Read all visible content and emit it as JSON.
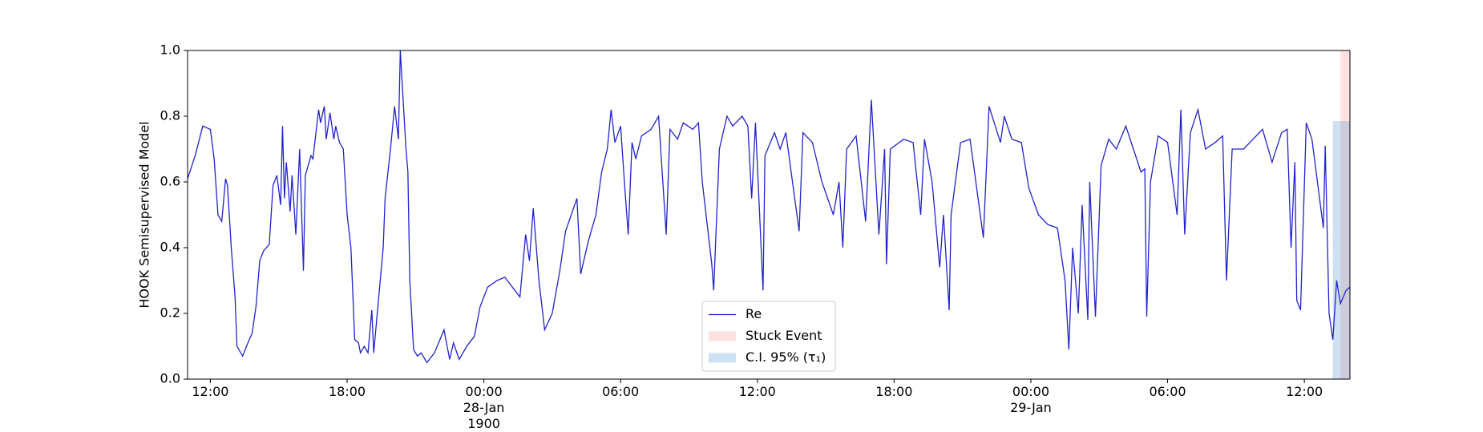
{
  "chart_data": {
    "type": "line",
    "y_label": "HOOK Semisupervised Model",
    "x": [
      "1900-01-27 11:00",
      "1900-01-27 11:20",
      "1900-01-27 11:40",
      "1900-01-27 12:00",
      "1900-01-27 12:10",
      "1900-01-27 12:20",
      "1900-01-27 12:30",
      "1900-01-27 12:40",
      "1900-01-27 12:45",
      "1900-01-27 12:55",
      "1900-01-27 13:05",
      "1900-01-27 13:10",
      "1900-01-27 13:25",
      "1900-01-27 13:35",
      "1900-01-27 13:50",
      "1900-01-27 14:00",
      "1900-01-27 14:10",
      "1900-01-27 14:20",
      "1900-01-27 14:35",
      "1900-01-27 14:45",
      "1900-01-27 14:55",
      "1900-01-27 15:05",
      "1900-01-27 15:10",
      "1900-01-27 15:15",
      "1900-01-27 15:20",
      "1900-01-27 15:30",
      "1900-01-27 15:35",
      "1900-01-27 15:45",
      "1900-01-27 15:55",
      "1900-01-27 16:05",
      "1900-01-27 16:10",
      "1900-01-27 16:25",
      "1900-01-27 16:30",
      "1900-01-27 16:45",
      "1900-01-27 16:50",
      "1900-01-27 17:00",
      "1900-01-27 17:05",
      "1900-01-27 17:15",
      "1900-01-27 17:25",
      "1900-01-27 17:30",
      "1900-01-27 17:40",
      "1900-01-27 17:50",
      "1900-01-27 18:00",
      "1900-01-27 18:10",
      "1900-01-27 18:20",
      "1900-01-27 18:30",
      "1900-01-27 18:35",
      "1900-01-27 18:45",
      "1900-01-27 18:55",
      "1900-01-27 19:05",
      "1900-01-27 19:10",
      "1900-01-27 19:35",
      "1900-01-27 19:40",
      "1900-01-27 19:55",
      "1900-01-27 20:05",
      "1900-01-27 20:15",
      "1900-01-27 20:20",
      "1900-01-27 20:35",
      "1900-01-27 20:40",
      "1900-01-27 20:45",
      "1900-01-27 20:55",
      "1900-01-27 21:05",
      "1900-01-27 21:15",
      "1900-01-27 21:30",
      "1900-01-27 21:50",
      "1900-01-27 22:15",
      "1900-01-27 22:30",
      "1900-01-27 22:40",
      "1900-01-27 22:55",
      "1900-01-27 23:15",
      "1900-01-27 23:35",
      "1900-01-27 23:50",
      "1900-01-28 00:10",
      "1900-01-28 00:35",
      "1900-01-28 00:55",
      "1900-01-28 01:15",
      "1900-01-28 01:35",
      "1900-01-28 01:50",
      "1900-01-28 02:00",
      "1900-01-28 02:10",
      "1900-01-28 02:25",
      "1900-01-28 02:40",
      "1900-01-28 03:00",
      "1900-01-28 03:20",
      "1900-01-28 03:35",
      "1900-01-28 04:05",
      "1900-01-28 04:15",
      "1900-01-28 04:35",
      "1900-01-28 04:55",
      "1900-01-28 05:10",
      "1900-01-28 05:25",
      "1900-01-28 05:35",
      "1900-01-28 05:45",
      "1900-01-28 06:00",
      "1900-01-28 06:10",
      "1900-01-28 06:20",
      "1900-01-28 06:30",
      "1900-01-28 06:40",
      "1900-01-28 06:55",
      "1900-01-28 07:20",
      "1900-01-28 07:40",
      "1900-01-28 08:00",
      "1900-01-28 08:10",
      "1900-01-28 08:30",
      "1900-01-28 08:45",
      "1900-01-28 09:10",
      "1900-01-28 09:25",
      "1900-01-28 09:35",
      "1900-01-28 09:50",
      "1900-01-28 10:00",
      "1900-01-28 10:05",
      "1900-01-28 10:20",
      "1900-01-28 10:40",
      "1900-01-28 10:55",
      "1900-01-28 11:20",
      "1900-01-28 11:35",
      "1900-01-28 11:45",
      "1900-01-28 11:55",
      "1900-01-28 12:15",
      "1900-01-28 12:20",
      "1900-01-28 12:45",
      "1900-01-28 13:00",
      "1900-01-28 13:15",
      "1900-01-28 13:50",
      "1900-01-28 14:00",
      "1900-01-28 14:25",
      "1900-01-28 14:50",
      "1900-01-28 15:20",
      "1900-01-28 15:35",
      "1900-01-28 15:45",
      "1900-01-28 15:55",
      "1900-01-28 16:20",
      "1900-01-28 16:45",
      "1900-01-28 17:00",
      "1900-01-28 17:20",
      "1900-01-28 17:35",
      "1900-01-28 17:40",
      "1900-01-28 17:50",
      "1900-01-28 18:25",
      "1900-01-28 18:50",
      "1900-01-28 19:10",
      "1900-01-28 19:20",
      "1900-01-28 19:40",
      "1900-01-28 20:00",
      "1900-01-28 20:10",
      "1900-01-28 20:25",
      "1900-01-28 20:30",
      "1900-01-28 20:55",
      "1900-01-28 21:20",
      "1900-01-28 21:55",
      "1900-01-28 22:10",
      "1900-01-28 22:40",
      "1900-01-28 22:50",
      "1900-01-28 23:10",
      "1900-01-28 23:35",
      "1900-01-28 23:55",
      "1900-01-29 00:20",
      "1900-01-29 00:45",
      "1900-01-29 01:10",
      "1900-01-29 01:30",
      "1900-01-29 01:40",
      "1900-01-29 01:50",
      "1900-01-29 02:05",
      "1900-01-29 02:15",
      "1900-01-29 02:30",
      "1900-01-29 02:35",
      "1900-01-29 02:50",
      "1900-01-29 03:05",
      "1900-01-29 03:25",
      "1900-01-29 03:45",
      "1900-01-29 04:10",
      "1900-01-29 04:30",
      "1900-01-29 04:50",
      "1900-01-29 05:00",
      "1900-01-29 05:05",
      "1900-01-29 05:15",
      "1900-01-29 05:35",
      "1900-01-29 06:00",
      "1900-01-29 06:25",
      "1900-01-29 06:35",
      "1900-01-29 06:45",
      "1900-01-29 07:00",
      "1900-01-29 07:20",
      "1900-01-29 07:40",
      "1900-01-29 08:05",
      "1900-01-29 08:25",
      "1900-01-29 08:35",
      "1900-01-29 08:50",
      "1900-01-29 09:20",
      "1900-01-29 09:45",
      "1900-01-29 10:10",
      "1900-01-29 10:35",
      "1900-01-29 11:00",
      "1900-01-29 11:15",
      "1900-01-29 11:25",
      "1900-01-29 11:35",
      "1900-01-29 11:40",
      "1900-01-29 11:50",
      "1900-01-29 12:05",
      "1900-01-29 12:20",
      "1900-01-29 12:50",
      "1900-01-29 12:55",
      "1900-01-29 13:05",
      "1900-01-29 13:15",
      "1900-01-29 13:25",
      "1900-01-29 13:35",
      "1900-01-29 13:50",
      "1900-01-29 14:00"
    ],
    "series": [
      {
        "name": "Re",
        "color": "#2222cc",
        "values": [
          0.61,
          0.68,
          0.77,
          0.76,
          0.67,
          0.5,
          0.48,
          0.61,
          0.59,
          0.4,
          0.25,
          0.1,
          0.07,
          0.1,
          0.14,
          0.22,
          0.36,
          0.39,
          0.41,
          0.59,
          0.62,
          0.53,
          0.77,
          0.55,
          0.66,
          0.51,
          0.62,
          0.44,
          0.7,
          0.33,
          0.62,
          0.68,
          0.67,
          0.82,
          0.78,
          0.83,
          0.73,
          0.81,
          0.73,
          0.77,
          0.72,
          0.7,
          0.5,
          0.4,
          0.12,
          0.11,
          0.08,
          0.1,
          0.08,
          0.21,
          0.08,
          0.4,
          0.55,
          0.71,
          0.83,
          0.73,
          1.0,
          0.7,
          0.63,
          0.3,
          0.09,
          0.07,
          0.08,
          0.05,
          0.08,
          0.15,
          0.06,
          0.11,
          0.06,
          0.1,
          0.13,
          0.22,
          0.28,
          0.3,
          0.31,
          0.28,
          0.25,
          0.44,
          0.36,
          0.52,
          0.3,
          0.15,
          0.2,
          0.33,
          0.45,
          0.55,
          0.32,
          0.42,
          0.5,
          0.63,
          0.7,
          0.82,
          0.72,
          0.77,
          0.6,
          0.44,
          0.72,
          0.67,
          0.74,
          0.76,
          0.8,
          0.44,
          0.76,
          0.73,
          0.78,
          0.76,
          0.78,
          0.6,
          0.45,
          0.35,
          0.27,
          0.7,
          0.8,
          0.77,
          0.8,
          0.77,
          0.55,
          0.78,
          0.27,
          0.68,
          0.75,
          0.7,
          0.75,
          0.45,
          0.75,
          0.72,
          0.6,
          0.5,
          0.6,
          0.4,
          0.7,
          0.74,
          0.48,
          0.85,
          0.44,
          0.7,
          0.35,
          0.7,
          0.73,
          0.72,
          0.5,
          0.73,
          0.6,
          0.34,
          0.5,
          0.21,
          0.5,
          0.72,
          0.73,
          0.43,
          0.83,
          0.72,
          0.8,
          0.73,
          0.72,
          0.58,
          0.5,
          0.47,
          0.46,
          0.3,
          0.09,
          0.4,
          0.2,
          0.53,
          0.18,
          0.6,
          0.19,
          0.65,
          0.73,
          0.7,
          0.77,
          0.7,
          0.63,
          0.64,
          0.19,
          0.6,
          0.74,
          0.72,
          0.5,
          0.82,
          0.44,
          0.75,
          0.82,
          0.7,
          0.72,
          0.74,
          0.3,
          0.7,
          0.7,
          0.73,
          0.76,
          0.66,
          0.75,
          0.76,
          0.4,
          0.66,
          0.24,
          0.21,
          0.78,
          0.73,
          0.46,
          0.71,
          0.2,
          0.12,
          0.3,
          0.23,
          0.27,
          0.28
        ]
      }
    ],
    "spans": [
      {
        "name": "Stuck Event",
        "color": "#ff9a9a",
        "x": [
          "1900-01-29 13:35",
          "1900-01-29 14:00"
        ]
      },
      {
        "name": "C.I. 95% (τ₁)",
        "color": "#5b9bd0",
        "x": [
          "1900-01-29 13:15",
          "1900-01-29 14:00"
        ],
        "y": [
          0,
          0.785
        ]
      }
    ],
    "xlim": [
      "1900-01-27 11:00",
      "1900-01-29 14:00"
    ],
    "xticks": [
      {
        "value": "1900-01-27 12:00",
        "label": "12:00"
      },
      {
        "value": "1900-01-27 18:00",
        "label": "18:00"
      },
      {
        "value": "1900-01-28 00:00",
        "label": "00:00\n28-Jan\n1900"
      },
      {
        "value": "1900-01-28 06:00",
        "label": "06:00"
      },
      {
        "value": "1900-01-28 12:00",
        "label": "12:00"
      },
      {
        "value": "1900-01-28 18:00",
        "label": "18:00"
      },
      {
        "value": "1900-01-29 00:00",
        "label": "00:00\n29-Jan"
      },
      {
        "value": "1900-01-29 06:00",
        "label": "06:00"
      },
      {
        "value": "1900-01-29 12:00",
        "label": "12:00"
      }
    ],
    "ylim": [
      0,
      1
    ],
    "yticks": [
      {
        "value": 0,
        "label": "0.0"
      },
      0.2,
      0.4,
      0.6,
      0.8,
      {
        "value": 1,
        "label": "1.0"
      }
    ],
    "legend": "lower center"
  }
}
